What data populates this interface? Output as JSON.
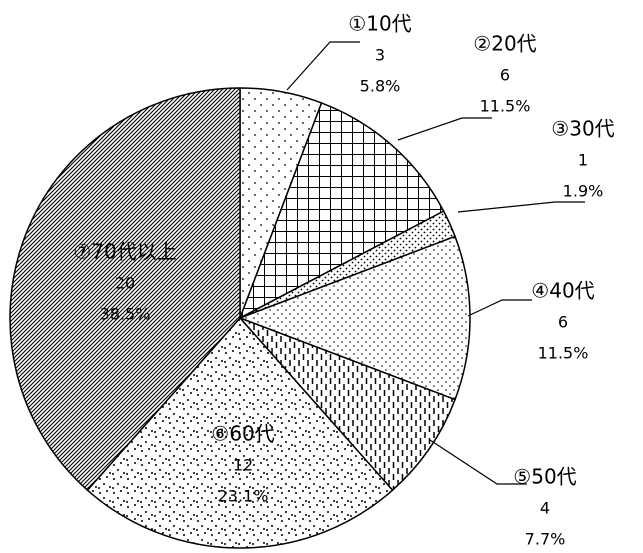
{
  "chart_data": {
    "type": "pie",
    "categories": [
      "①10代",
      "②20代",
      "③30代",
      "④40代",
      "⑤50代",
      "⑥60代",
      "⑦70代以上"
    ],
    "values": [
      3,
      6,
      1,
      6,
      4,
      12,
      20
    ],
    "percent_labels": [
      "5.8%",
      "11.5%",
      "1.9%",
      "11.5%",
      "7.7%",
      "23.1%",
      "38.5%"
    ]
  }
}
